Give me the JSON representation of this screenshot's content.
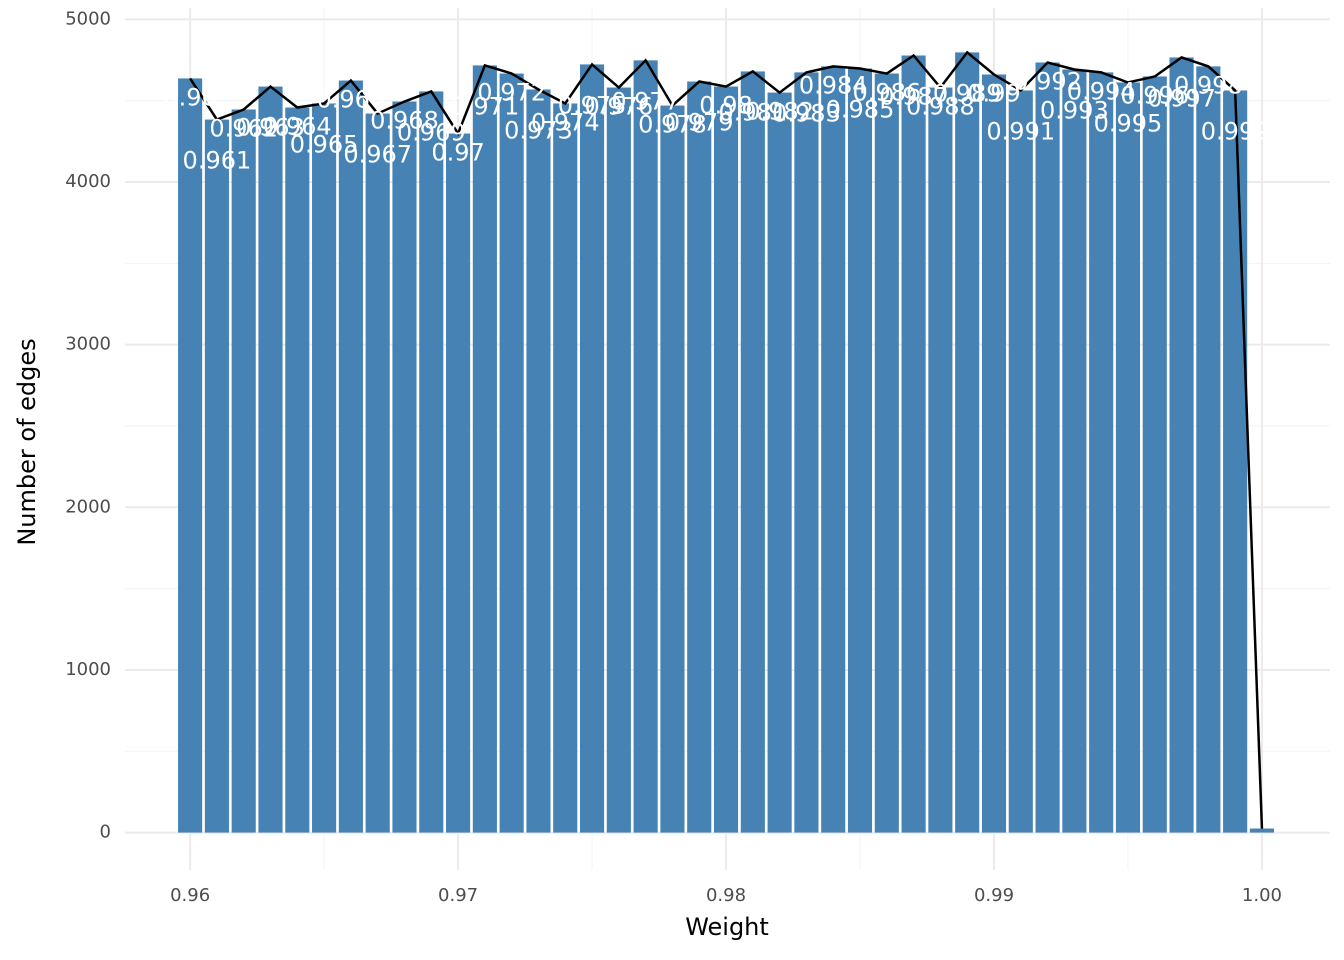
{
  "chart_data": {
    "type": "bar",
    "x_label": "Weight",
    "y_label": "Number of edges",
    "x": [
      0.96,
      0.961,
      0.962,
      0.963,
      0.964,
      0.965,
      0.966,
      0.967,
      0.968,
      0.969,
      0.97,
      0.971,
      0.972,
      0.973,
      0.974,
      0.975,
      0.976,
      0.977,
      0.978,
      0.979,
      0.98,
      0.981,
      0.982,
      0.983,
      0.984,
      0.985,
      0.986,
      0.987,
      0.988,
      0.989,
      0.99,
      0.991,
      0.992,
      0.993,
      0.994,
      0.995,
      0.996,
      0.997,
      0.998,
      0.999,
      1
    ],
    "values": [
      4637,
      4384,
      4446,
      4587,
      4458,
      4483,
      4624,
      4421,
      4495,
      4557,
      4298,
      4717,
      4667,
      4569,
      4483,
      4723,
      4581,
      4748,
      4470,
      4618,
      4587,
      4680,
      4550,
      4674,
      4711,
      4698,
      4667,
      4778,
      4581,
      4797,
      4661,
      4563,
      4735,
      4692,
      4674,
      4612,
      4649,
      4766,
      4711,
      4563,
      25
    ],
    "color": "#4682b4",
    "line_color": "#000000",
    "xlim": [
      0.95757,
      1.00254
    ],
    "ylim": [
      -230,
      5070
    ],
    "xticks": [
      0.96,
      0.97,
      0.98,
      0.99,
      {
        "value": 1,
        "label": "1.00"
      }
    ],
    "yticks": [
      0,
      1000,
      2000,
      3000,
      4000,
      5000
    ],
    "grid": true
  }
}
